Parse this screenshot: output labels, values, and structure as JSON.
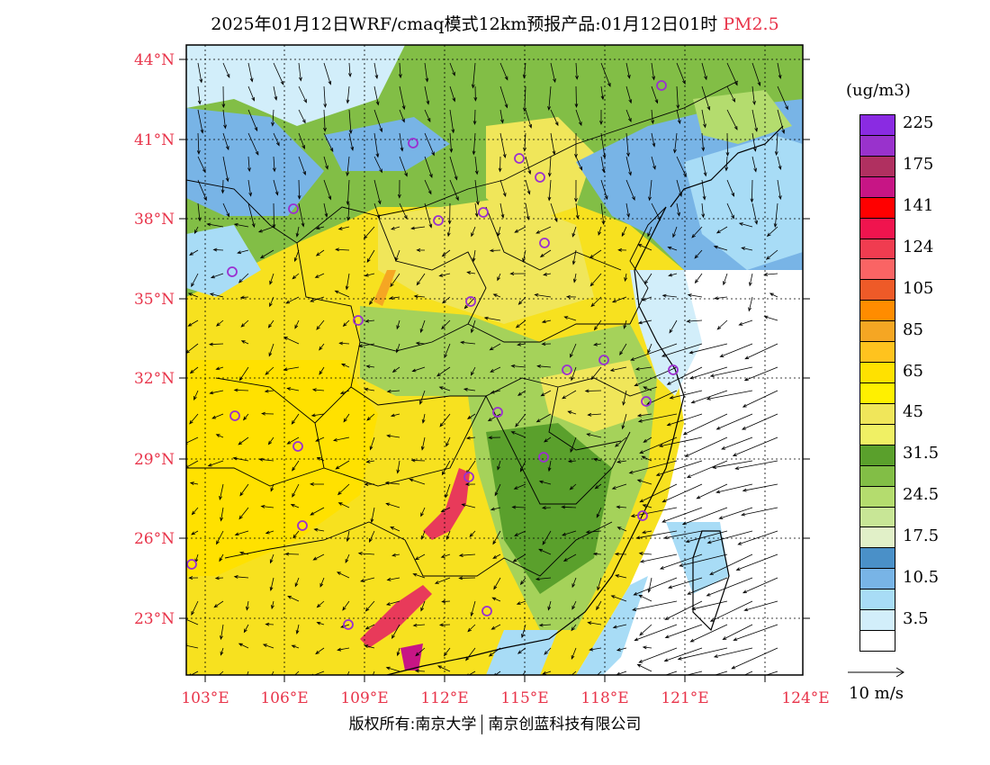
{
  "title": {
    "main": "2025年01月12日WRF/cmaq模式12km预报产品:01月12日01时",
    "variable": "PM2.5"
  },
  "map": {
    "lat_labels": [
      "44°N",
      "41°N",
      "38°N",
      "35°N",
      "32°N",
      "29°N",
      "26°N",
      "23°N"
    ],
    "lon_labels": [
      "103°E",
      "106°E",
      "109°E",
      "112°E",
      "115°E",
      "118°E",
      "121°E",
      "124°E"
    ],
    "colors": {
      "yellow": "#f7e11f",
      "lightyellow": "#f0f07a",
      "green": "#5aa02c",
      "lightgreen": "#a5d25a",
      "paleblue": "#a8dcf6",
      "blue": "#4a90c8",
      "red": "#e83a5a",
      "orange": "#f5a623",
      "station": "#9b30d0"
    }
  },
  "legend": {
    "unit": "(ug/m3)",
    "bins": [
      {
        "label": "225",
        "color": "#8a2be2"
      },
      {
        "label": "",
        "color": "#9932cc"
      },
      {
        "label": "175",
        "color": "#b03060"
      },
      {
        "label": "",
        "color": "#c71585"
      },
      {
        "label": "141",
        "color": "#ff0000"
      },
      {
        "label": "",
        "color": "#f0144e"
      },
      {
        "label": "124",
        "color": "#f03c50"
      },
      {
        "label": "",
        "color": "#fa6464"
      },
      {
        "label": "105",
        "color": "#ee5a28"
      },
      {
        "label": "",
        "color": "#ff8c00"
      },
      {
        "label": "85",
        "color": "#f5a623"
      },
      {
        "label": "",
        "color": "#ffc31e"
      },
      {
        "label": "65",
        "color": "#ffe100"
      },
      {
        "label": "",
        "color": "#fff000"
      },
      {
        "label": "45",
        "color": "#f0e65a"
      },
      {
        "label": "",
        "color": "#f0f064"
      },
      {
        "label": "31.5",
        "color": "#5aa02c"
      },
      {
        "label": "",
        "color": "#82be46"
      },
      {
        "label": "24.5",
        "color": "#b4dc6e"
      },
      {
        "label": "",
        "color": "#c8e696"
      },
      {
        "label": "17.5",
        "color": "#e1f0c8"
      },
      {
        "label": "",
        "color": "#4a90c8"
      },
      {
        "label": "10.5",
        "color": "#78b4e6"
      },
      {
        "label": "",
        "color": "#a8dcf6"
      },
      {
        "label": "3.5",
        "color": "#d2eefa"
      },
      {
        "label": "",
        "color": "#ffffff"
      }
    ]
  },
  "wind_reference": "10 m/s",
  "copyright": {
    "left": "版权所有:南京大学",
    "right": "南京创蓝科技有限公司"
  }
}
